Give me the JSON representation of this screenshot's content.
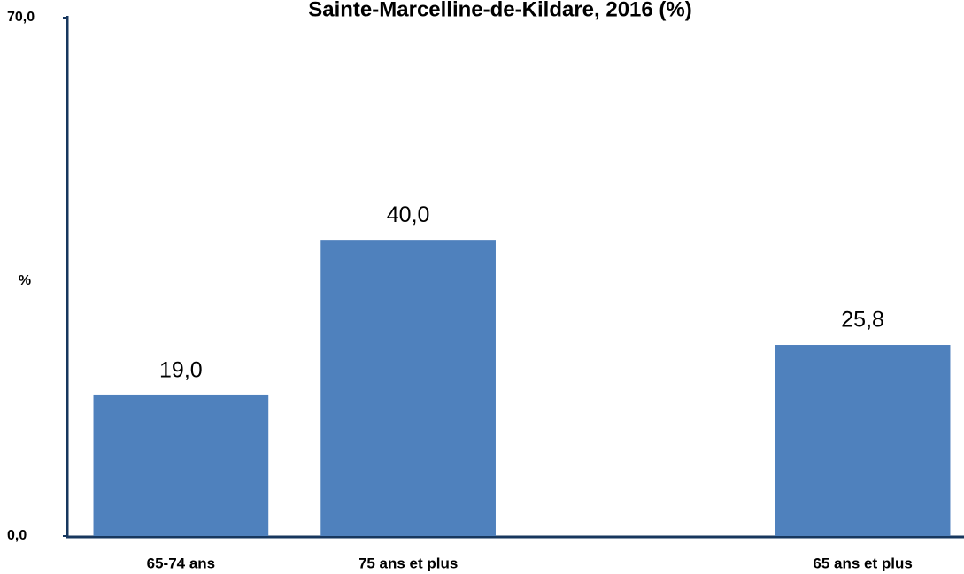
{
  "chart_data": {
    "type": "bar",
    "title": "Sainte-Marcelline-de-Kildare, 2016 (%)",
    "y_label": "%",
    "categories": [
      "65-74 ans",
      "75 ans et plus",
      null,
      "65 ans et plus"
    ],
    "values": [
      19.0,
      40.0,
      null,
      25.8
    ],
    "value_labels": [
      "19,0",
      "40,0",
      null,
      "25,8"
    ],
    "color": "#4f81bd",
    "ylim": [
      0,
      70
    ],
    "yticks": [
      {
        "value": 0,
        "label": "0,0"
      },
      {
        "value": 70,
        "label": "70,0"
      }
    ],
    "grid": false
  }
}
